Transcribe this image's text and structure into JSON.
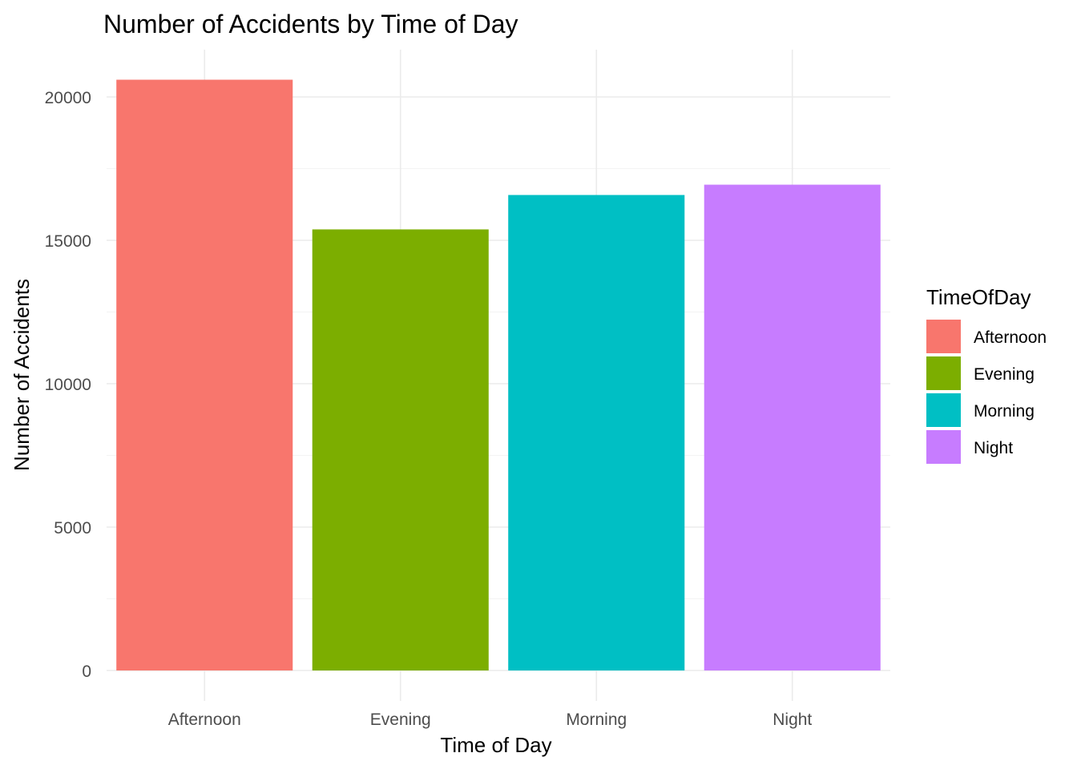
{
  "chart_data": {
    "type": "bar",
    "title": "Number of Accidents by Time of Day",
    "xlabel": "Time of Day",
    "ylabel": "Number of Accidents",
    "categories": [
      "Afternoon",
      "Evening",
      "Morning",
      "Night"
    ],
    "values": [
      20600,
      15380,
      16580,
      16940
    ],
    "colors": [
      "#F8766D",
      "#7CAE00",
      "#00BFC4",
      "#C77CFF"
    ],
    "ylim": [
      0,
      22000
    ],
    "yticks": [
      0,
      5000,
      10000,
      15000,
      20000
    ],
    "grid": true,
    "legend": {
      "title": "TimeOfDay",
      "placement": "right",
      "items": [
        "Afternoon",
        "Evening",
        "Morning",
        "Night"
      ]
    }
  }
}
